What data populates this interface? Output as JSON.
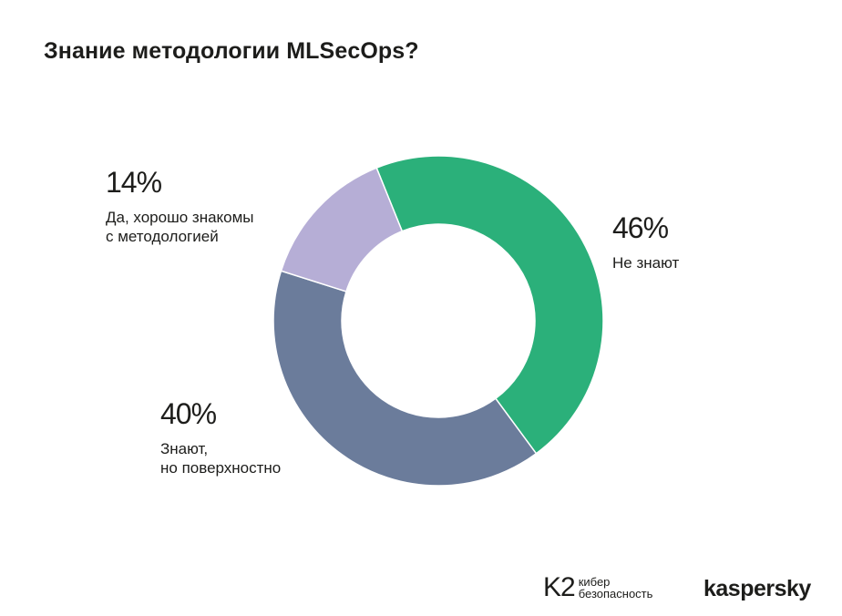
{
  "title": "Знание методологии MLSecOps?",
  "chart_data": {
    "type": "pie",
    "donut": true,
    "slices": [
      {
        "label": "Не знают",
        "value": 46,
        "value_label": "46%",
        "color": "#2bb07a"
      },
      {
        "label": "Знают,\nно поверхностно",
        "value": 40,
        "value_label": "40%",
        "color": "#6b7c9b"
      },
      {
        "label": "Да, хорошо знакомы\nс методологией",
        "value": 14,
        "value_label": "14%",
        "color": "#b6aed6"
      }
    ]
  },
  "footer": {
    "k2_mark": "K2",
    "k2_text": "кибер\nбезопасность",
    "kaspersky": "kaspersky"
  }
}
